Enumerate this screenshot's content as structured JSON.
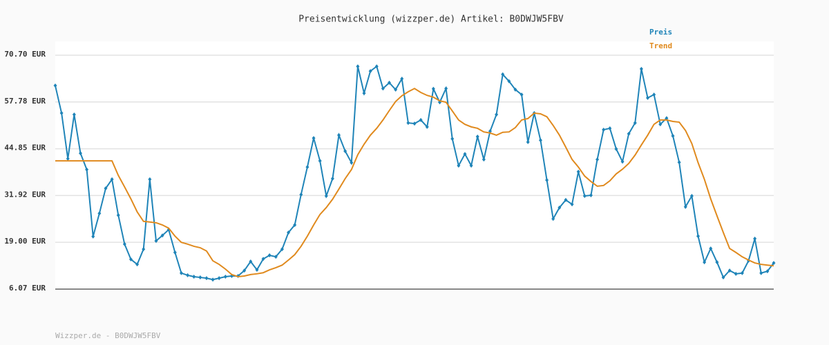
{
  "chart_data": {
    "type": "line",
    "title": "Preisentwicklung (wizzper.de) Artikel: B0DWJW5FBV",
    "footer": "Wizzper.de - B0DWJW5FBV",
    "ylim": [
      6.07,
      70.7
    ],
    "yticks": [
      {
        "value": 6.07,
        "label": "6.07 EUR"
      },
      {
        "value": 19.0,
        "label": "19.00 EUR"
      },
      {
        "value": 31.92,
        "label": "31.92 EUR"
      },
      {
        "value": 44.85,
        "label": "44.85 EUR"
      },
      {
        "value": 57.78,
        "label": "57.78 EUR"
      },
      {
        "value": 70.7,
        "label": "70.70 EUR"
      }
    ],
    "grid": true,
    "legend": "top-right",
    "series": [
      {
        "name": "Preis",
        "color": "#1f84b8",
        "markers": true,
        "values": [
          62.3,
          54.7,
          42.1,
          54.3,
          43.6,
          39.1,
          20.6,
          27.0,
          33.9,
          36.4,
          26.5,
          18.5,
          14.3,
          12.9,
          17.1,
          36.4,
          19.4,
          20.9,
          22.5,
          16.2,
          10.5,
          9.9,
          9.5,
          9.3,
          9.1,
          8.7,
          9.1,
          9.5,
          9.7,
          9.7,
          11.2,
          13.7,
          11.4,
          14.4,
          15.4,
          15.0,
          17.1,
          21.7,
          23.8,
          32.2,
          39.8,
          47.8,
          41.5,
          31.8,
          36.6,
          48.6,
          44.2,
          41.0,
          67.6,
          60.2,
          66.3,
          67.6,
          61.5,
          63.1,
          61.2,
          64.2,
          52.0,
          51.8,
          52.8,
          50.9,
          61.4,
          57.7,
          61.5,
          47.6,
          40.2,
          43.4,
          40.2,
          48.2,
          41.9,
          49.7,
          54.3,
          65.4,
          63.5,
          61.2,
          59.8,
          46.7,
          54.7,
          47.2,
          36.2,
          25.5,
          28.6,
          30.7,
          29.5,
          38.5,
          31.8,
          32.0,
          41.9,
          50.1,
          50.5,
          44.8,
          41.3,
          49.0,
          52.0,
          66.9,
          58.9,
          59.8,
          51.6,
          53.3,
          48.4,
          41.1,
          28.8,
          31.8,
          20.7,
          13.5,
          17.3,
          13.5,
          9.3,
          11.2,
          10.3,
          10.5,
          13.9,
          20.0,
          10.5,
          11.0,
          13.3
        ]
      },
      {
        "name": "Trend",
        "color": "#e08a1e",
        "markers": false,
        "values": [
          41.5,
          41.5,
          41.5,
          41.5,
          41.5,
          41.5,
          41.5,
          41.5,
          41.5,
          41.5,
          37.5,
          34.3,
          31.0,
          27.4,
          24.8,
          24.6,
          24.4,
          23.8,
          22.9,
          20.7,
          19.0,
          18.5,
          17.9,
          17.5,
          16.6,
          13.9,
          12.9,
          11.6,
          10.1,
          9.5,
          9.7,
          10.1,
          10.3,
          10.6,
          11.4,
          12.0,
          12.7,
          14.1,
          15.6,
          17.9,
          20.7,
          23.8,
          26.7,
          28.6,
          30.9,
          33.7,
          36.6,
          39.1,
          43.2,
          46.1,
          48.6,
          50.5,
          52.8,
          55.4,
          57.9,
          59.5,
          60.6,
          61.5,
          60.4,
          59.6,
          59.1,
          58.1,
          57.7,
          55.3,
          52.8,
          51.6,
          50.9,
          50.5,
          49.5,
          49.2,
          48.6,
          49.4,
          49.5,
          50.7,
          52.8,
          53.2,
          54.7,
          54.5,
          53.7,
          51.3,
          48.6,
          45.3,
          41.9,
          39.8,
          37.3,
          35.8,
          34.5,
          34.7,
          36.0,
          37.9,
          39.2,
          40.8,
          43.1,
          45.9,
          48.6,
          51.6,
          52.8,
          52.8,
          52.4,
          52.2,
          49.9,
          46.3,
          41.0,
          36.4,
          31.0,
          26.3,
          21.7,
          17.3,
          16.2,
          15.0,
          14.1,
          13.3,
          12.9,
          12.7,
          12.5
        ]
      }
    ]
  }
}
